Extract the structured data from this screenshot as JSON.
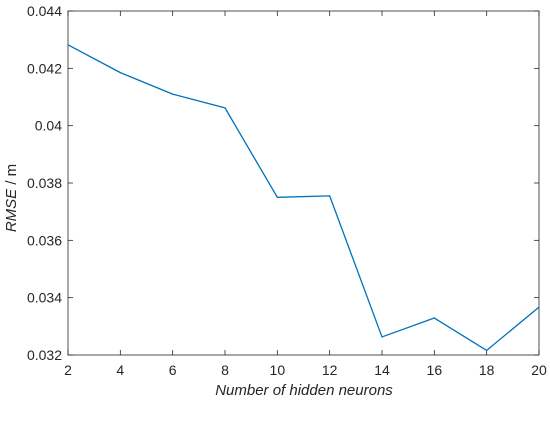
{
  "chart_data": {
    "type": "line",
    "title": "",
    "xlabel": "Number of hidden neurons",
    "ylabel_italic": "RMSE",
    "ylabel_rest": " / m",
    "xlim": [
      2,
      20
    ],
    "ylim": [
      0.032,
      0.044
    ],
    "xticks": [
      2,
      4,
      6,
      8,
      10,
      12,
      14,
      16,
      18,
      20
    ],
    "xtick_labels": [
      "2",
      "4",
      "6",
      "8",
      "10",
      "12",
      "14",
      "16",
      "18",
      "20"
    ],
    "yticks": [
      0.032,
      0.034,
      0.036,
      0.038,
      0.04,
      0.042,
      0.044
    ],
    "ytick_labels": [
      "0.032",
      "0.034",
      "0.036",
      "0.038",
      "0.04",
      "0.042",
      "0.044"
    ],
    "grid": false,
    "series": [
      {
        "color": "#0072BD",
        "x": [
          2,
          4,
          6,
          8,
          10,
          12,
          14,
          16,
          18,
          20
        ],
        "y": [
          0.04282,
          0.04185,
          0.0411,
          0.04062,
          0.0375,
          0.03755,
          0.03263,
          0.03329,
          0.03216,
          0.03367
        ]
      }
    ]
  }
}
